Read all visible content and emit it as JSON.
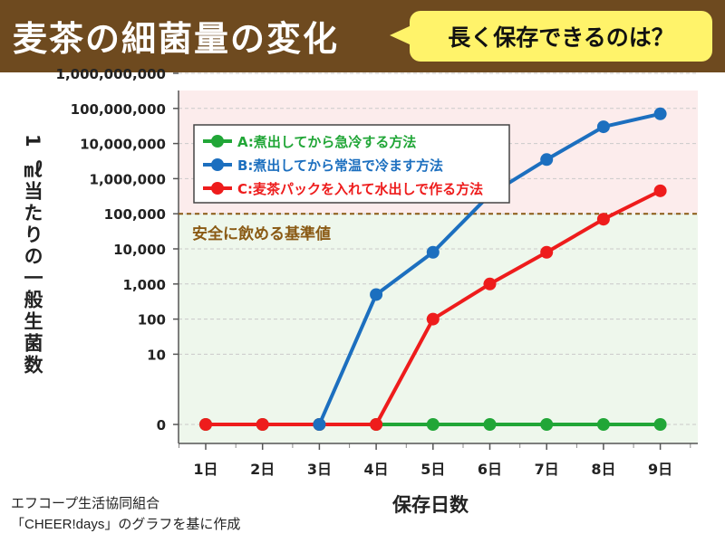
{
  "header": {
    "title": "麦茶の細菌量の変化",
    "bubble": "長く保存できるのは？"
  },
  "footer": {
    "source_line1": "エフコープ生活協同組合",
    "source_line2": "「CHEER!days」のグラフを基に作成"
  },
  "colors": {
    "header_bg": "#6e4a1f",
    "bubble_bg": "#fff36a",
    "unsafe_zone": "#fcecec",
    "safe_zone": "#eef7ec",
    "threshold": "#8a5a14",
    "series_a": "#21a637",
    "series_b": "#1c6fbf",
    "series_c": "#ee1c1c"
  },
  "chart_data": {
    "type": "line",
    "title": "麦茶の細菌量の変化",
    "xlabel": "保存日数",
    "ylabel": "1 ㎖当たりの一般生菌数",
    "yscale": "log",
    "categories": [
      "1日",
      "2日",
      "3日",
      "4日",
      "5日",
      "6日",
      "7日",
      "8日",
      "9日"
    ],
    "yticks": [
      {
        "value": 0,
        "label": "0"
      },
      {
        "value": 10,
        "label": "10"
      },
      {
        "value": 100,
        "label": "100"
      },
      {
        "value": 1000,
        "label": "1,000"
      },
      {
        "value": 10000,
        "label": "10,000"
      },
      {
        "value": 100000,
        "label": "100,000"
      },
      {
        "value": 1000000,
        "label": "1,000,000"
      },
      {
        "value": 10000000,
        "label": "10,000,000"
      },
      {
        "value": 100000000,
        "label": "100,000,000"
      },
      {
        "value": 1000000000,
        "label": "1,000,000,000"
      }
    ],
    "series": [
      {
        "name": "A:煮出してから急冷する方法",
        "color": "#21a637",
        "values": [
          0,
          0,
          0,
          0,
          0,
          0,
          0,
          0,
          0
        ]
      },
      {
        "name": "B:煮出してから常温で冷ます方法",
        "color": "#1c6fbf",
        "values": [
          null,
          null,
          0,
          500,
          8000,
          350000,
          3500000,
          30000000,
          70000000
        ]
      },
      {
        "name": "C:麦茶パックを入れて水出しで作る方法",
        "color": "#ee1c1c",
        "values": [
          0,
          0,
          0,
          0,
          100,
          1000,
          8000,
          70000,
          450000
        ]
      }
    ],
    "threshold": {
      "value": 100000,
      "label": "安全に飲める基準値"
    },
    "grid": true,
    "legend_position": "top-left"
  }
}
